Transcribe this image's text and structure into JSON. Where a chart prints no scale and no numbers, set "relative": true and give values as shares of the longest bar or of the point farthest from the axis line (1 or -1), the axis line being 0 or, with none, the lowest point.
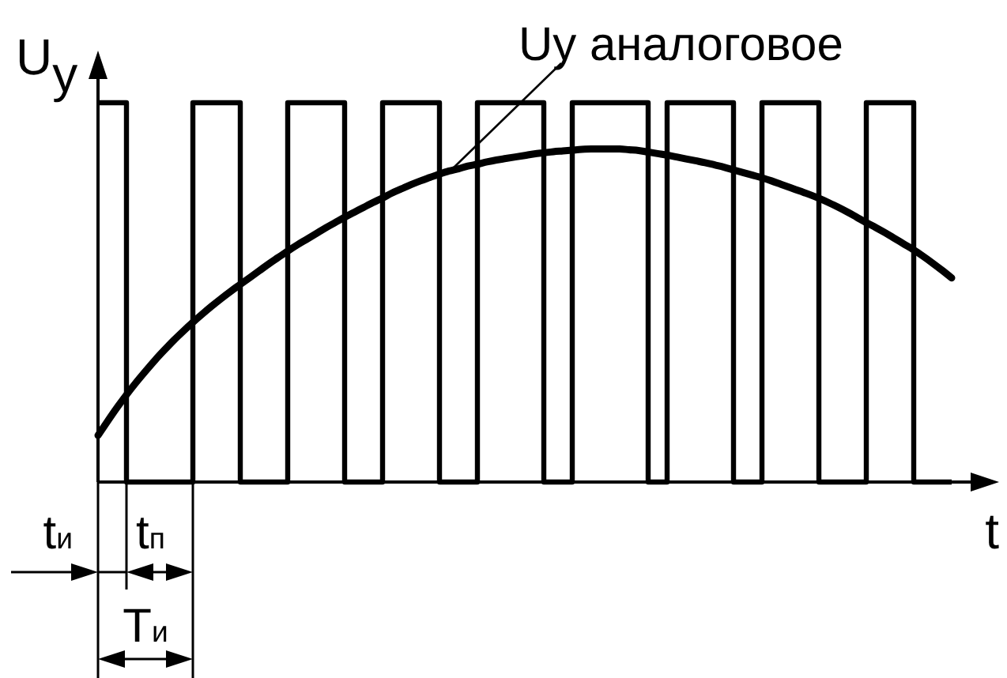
{
  "chart_data": {
    "type": "step",
    "relative": true,
    "xlabel": "t",
    "ylabel": "U$_{у}$",
    "categories": [
      null,
      null,
      null,
      null,
      null,
      null,
      null,
      null,
      null,
      null,
      null,
      null,
      null,
      null,
      null,
      null,
      null,
      null,
      null,
      null,
      null,
      null,
      null,
      null,
      null,
      null,
      null,
      null,
      null,
      null,
      null,
      null,
      null,
      null,
      null,
      null,
      null,
      null,
      null,
      null,
      null,
      null,
      null,
      null,
      null,
      null,
      null,
      null,
      null,
      null,
      null,
      null,
      null,
      null,
      null,
      null,
      null,
      null,
      null,
      null,
      null,
      null,
      null,
      null,
      null,
      null,
      null,
      null,
      null,
      null,
      null,
      null,
      null,
      null,
      null,
      null,
      null,
      null,
      null,
      null,
      null,
      null,
      null,
      null,
      null,
      null,
      null,
      null,
      null,
      null,
      null
    ],
    "series": [
      {
        "color": "#000000",
        "values": [
          1,
          1,
          1,
          0,
          0,
          0,
          0,
          0,
          0,
          0,
          1,
          1,
          1,
          1,
          1,
          0,
          0,
          0,
          0,
          0,
          1,
          1,
          1,
          1,
          1,
          1,
          0,
          0,
          0,
          0,
          1,
          1,
          1,
          1,
          1,
          1,
          0,
          0,
          0,
          0,
          1,
          1,
          1,
          1,
          1,
          1,
          1,
          0,
          0,
          0,
          1,
          1,
          1,
          1,
          1,
          1,
          1,
          1,
          0,
          0,
          1,
          1,
          1,
          1,
          1,
          1,
          1,
          0,
          0,
          0,
          1,
          1,
          1,
          1,
          1,
          1,
          0,
          0,
          0,
          0,
          0,
          1,
          1,
          1,
          1,
          1,
          0,
          0,
          0,
          0,
          0
        ]
      },
      {
        "type": "line",
        "color": "#000000",
        "values": [
          0.123,
          0.16,
          0.196,
          0.23,
          0.262,
          0.292,
          0.321,
          0.348,
          0.374,
          0.398,
          0.421,
          0.443,
          0.464,
          0.484,
          0.503,
          0.521,
          0.539,
          0.557,
          0.575,
          0.592,
          0.609,
          0.625,
          0.64,
          0.655,
          0.67,
          0.684,
          0.698,
          0.711,
          0.724,
          0.737,
          0.749,
          0.762,
          0.773,
          0.784,
          0.794,
          0.803,
          0.812,
          0.82,
          0.826,
          0.833,
          0.838,
          0.844,
          0.849,
          0.853,
          0.857,
          0.861,
          0.865,
          0.868,
          0.871,
          0.873,
          0.875,
          0.877,
          0.878,
          0.878,
          0.878,
          0.878,
          0.876,
          0.874,
          0.87,
          0.866,
          0.862,
          0.857,
          0.852,
          0.847,
          0.842,
          0.836,
          0.83,
          0.823,
          0.816,
          0.809,
          0.802,
          0.794,
          0.785,
          0.776,
          0.767,
          0.758,
          0.748,
          0.737,
          0.725,
          0.712,
          0.698,
          0.684,
          0.671,
          0.657,
          0.642,
          0.627,
          0.612,
          0.595,
          0.577,
          0.558,
          0.538
        ]
      }
    ],
    "annotations": [
      "Uу аналоговое",
      "t$_{и}$",
      "t$_{п}$",
      "T$_{и}$"
    ]
  }
}
